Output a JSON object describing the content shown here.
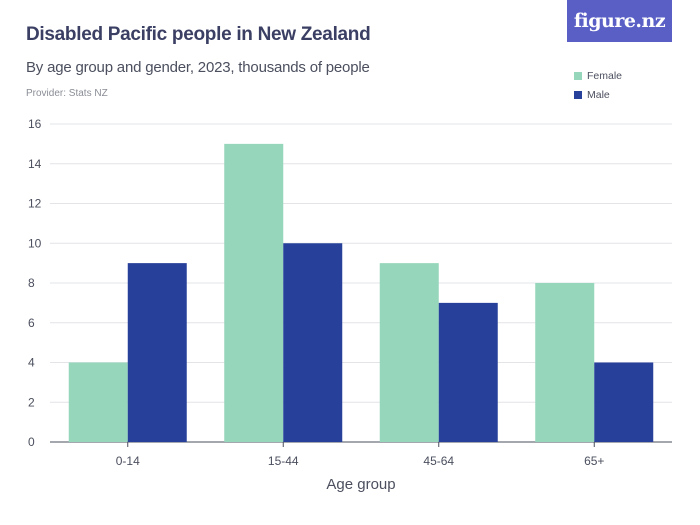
{
  "header": {
    "title": "Disabled Pacific people in New Zealand",
    "subtitle": "By age group and gender, 2023, thousands of people",
    "provider": "Provider: Stats NZ",
    "logo_text": "figure.nz"
  },
  "chart_data": {
    "type": "bar",
    "title": "Disabled Pacific people in New Zealand",
    "subtitle": "By age group and gender, 2023, thousands of people",
    "xlabel": "Age group",
    "ylabel": "",
    "categories": [
      "0-14",
      "15-44",
      "45-64",
      "65+"
    ],
    "series": [
      {
        "name": "Female",
        "color": "#96d6bb",
        "values": [
          4,
          15,
          9,
          8
        ]
      },
      {
        "name": "Male",
        "color": "#27419a",
        "values": [
          9,
          10,
          7,
          4
        ]
      }
    ],
    "ylim": [
      0,
      16
    ],
    "yticks": [
      0,
      2,
      4,
      6,
      8,
      10,
      12,
      14,
      16
    ],
    "grid": true,
    "legend": "top-right"
  }
}
